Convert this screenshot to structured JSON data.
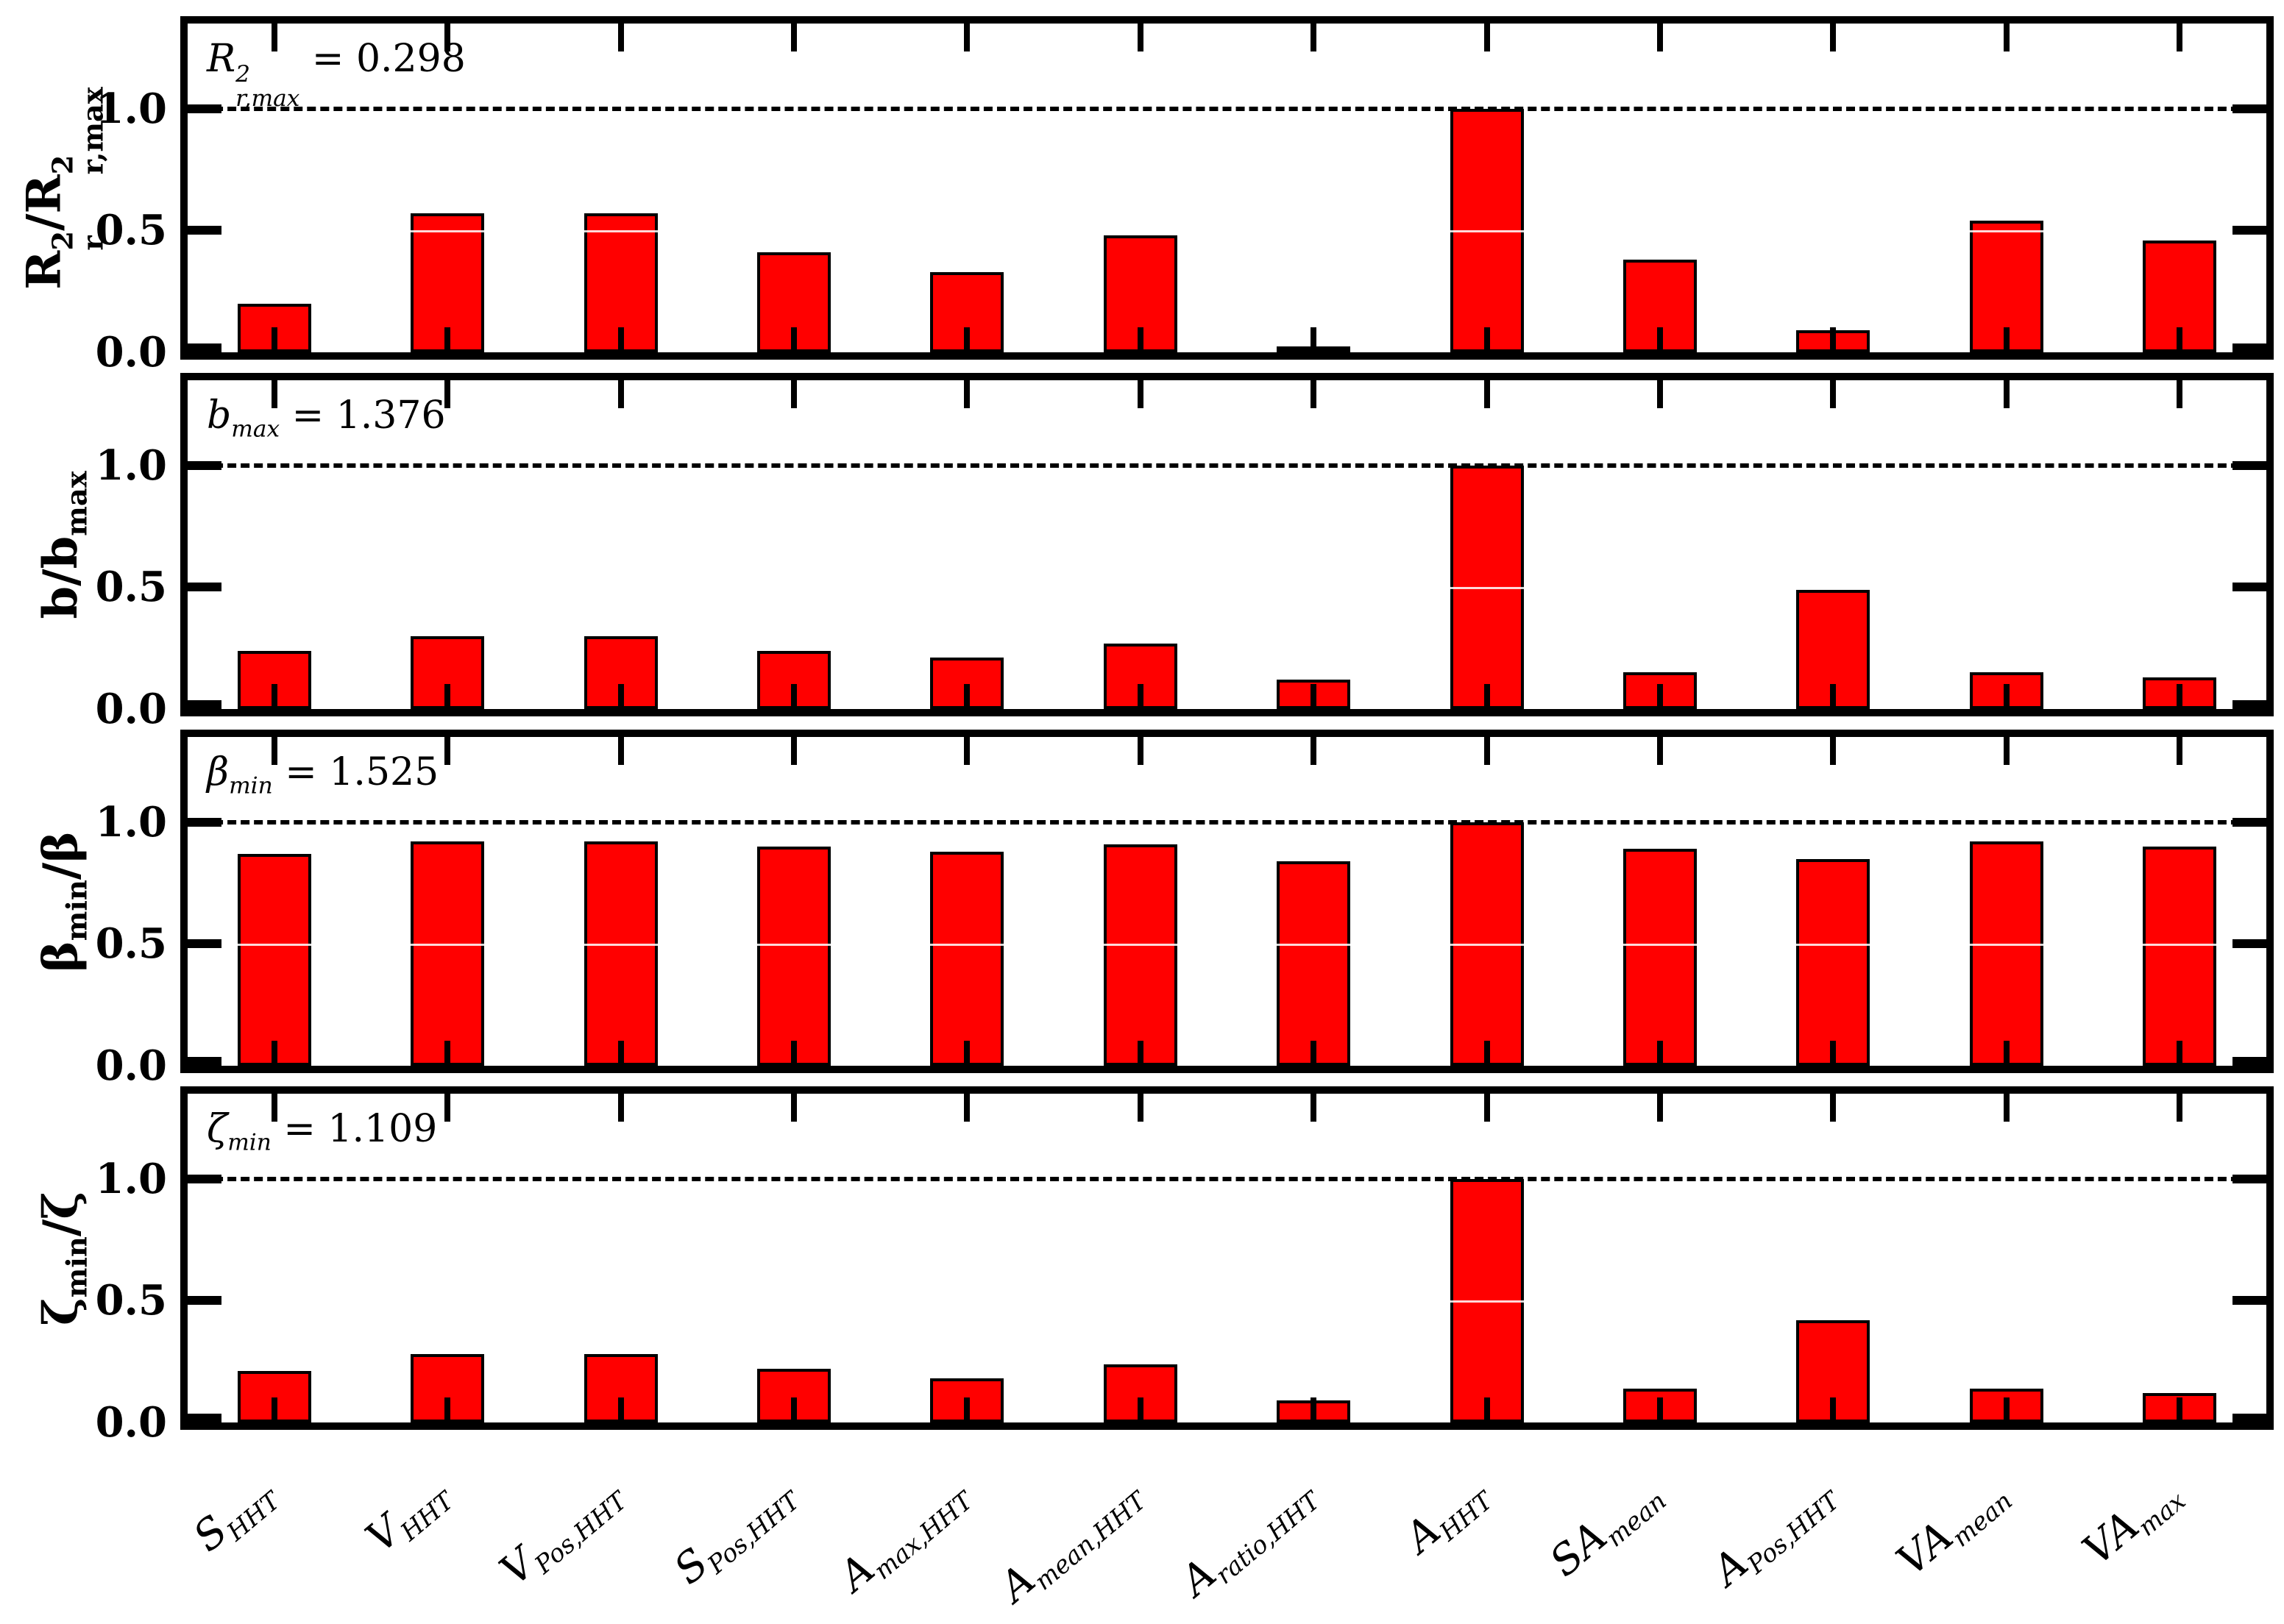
{
  "figure": {
    "background": "#ffffff"
  },
  "chart_data": {
    "type": "bar",
    "title": "",
    "xlabel": "",
    "bar_color": "#ff0000",
    "bar_edge_color": "#000000",
    "reference_line": {
      "y": 1.0,
      "style": "dashed",
      "color": "#000000"
    },
    "ylim": [
      0,
      1.35
    ],
    "ytick_labels": [
      "0.0",
      "0.5",
      "1.0"
    ],
    "ytick_values": [
      0,
      0.5,
      1.0
    ],
    "grid": "off",
    "legend_position": "none",
    "categories": [
      "S_HHT",
      "V_HHT",
      "V_Pos,HHT",
      "S_Pos,HHT",
      "A_max,HHT",
      "A_mean,HHT",
      "A_ratio,HHT",
      "A_HHT",
      "SA_mean",
      "A_Pos,HHT",
      "VA_mean",
      "VA_max"
    ],
    "categories_rich": [
      [
        {
          "text": "S",
          "sub": "HHT"
        }
      ],
      [
        {
          "text": "V",
          "sub": "HHT"
        }
      ],
      [
        {
          "text": "V",
          "sub": "Pos,HHT"
        }
      ],
      [
        {
          "text": "S",
          "sub": "Pos,HHT"
        }
      ],
      [
        {
          "text": "A",
          "sub": "max,HHT"
        }
      ],
      [
        {
          "text": "A",
          "sub": "mean,HHT"
        }
      ],
      [
        {
          "text": "A",
          "sub": "ratio,HHT"
        }
      ],
      [
        {
          "text": "A",
          "sub": "HHT"
        }
      ],
      [
        {
          "text": "SA",
          "sub": "mean"
        }
      ],
      [
        {
          "text": "A",
          "sub": "Pos,HHT"
        }
      ],
      [
        {
          "text": "VA",
          "sub": "mean"
        }
      ],
      [
        {
          "text": "VA",
          "sub": "max"
        }
      ]
    ],
    "panels": [
      {
        "id": "r2",
        "ylabel": "R2r/R2r,max",
        "ylabel_rich": [
          {
            "text": "R",
            "sup": "2",
            "sub": "r"
          },
          {
            "text": "/R",
            "sup": "2",
            "sub": "r,max"
          }
        ],
        "annotation": "R2r,max = 0.298",
        "annotation_rich": [
          {
            "text": "R",
            "sup": "2",
            "sub": "r,max"
          }
        ],
        "annotation_value": " = 0.298",
        "values": [
          0.2,
          0.57,
          0.57,
          0.41,
          0.33,
          0.48,
          0.02,
          1.0,
          0.38,
          0.09,
          0.54,
          0.46
        ]
      },
      {
        "id": "b",
        "ylabel": "b/b_max",
        "ylabel_rich": [
          {
            "text": "b/b",
            "sub": "max"
          }
        ],
        "annotation": "b_max = 1.376",
        "annotation_rich": [
          {
            "text": "b",
            "sub": "max"
          }
        ],
        "annotation_value": " = 1.376",
        "values": [
          0.24,
          0.3,
          0.3,
          0.24,
          0.21,
          0.27,
          0.12,
          1.0,
          0.15,
          0.49,
          0.15,
          0.13
        ]
      },
      {
        "id": "beta",
        "ylabel": "β_min/β",
        "ylabel_rich": [
          {
            "text": "β",
            "sub": "min"
          },
          {
            "text": "/β"
          }
        ],
        "annotation": "β_min = 1.525",
        "annotation_rich": [
          {
            "text": "β",
            "sub": "min"
          }
        ],
        "annotation_value": " = 1.525",
        "values": [
          0.87,
          0.92,
          0.92,
          0.9,
          0.88,
          0.91,
          0.84,
          1.0,
          0.89,
          0.85,
          0.92,
          0.9
        ]
      },
      {
        "id": "zeta",
        "ylabel": "ζ_min/ζ",
        "ylabel_rich": [
          {
            "text": "ζ",
            "sub": "min"
          },
          {
            "text": "/ζ"
          }
        ],
        "annotation": "ζ_min = 1.109",
        "annotation_rich": [
          {
            "text": "ζ",
            "sub": "min"
          }
        ],
        "annotation_value": " = 1.109",
        "values": [
          0.21,
          0.28,
          0.28,
          0.22,
          0.18,
          0.24,
          0.09,
          1.0,
          0.14,
          0.42,
          0.14,
          0.12
        ]
      }
    ]
  }
}
